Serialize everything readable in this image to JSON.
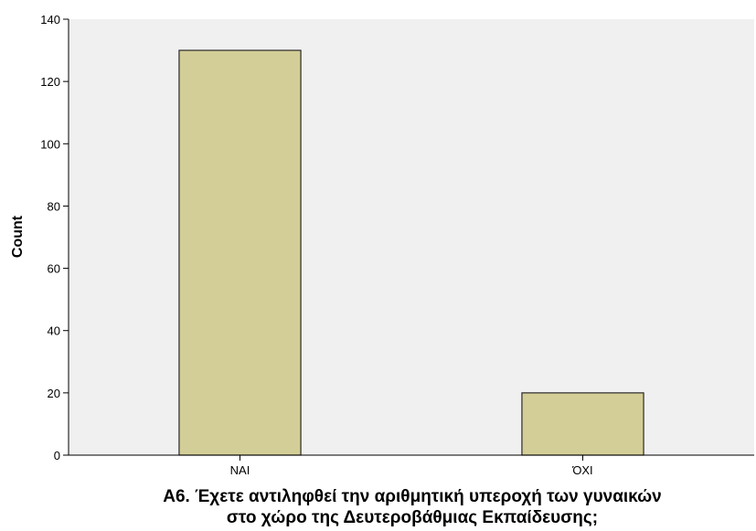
{
  "chart_data": {
    "type": "bar",
    "categories": [
      "ΝΑΙ",
      "ΌΧΙ"
    ],
    "values": [
      130,
      20
    ],
    "ylabel": "Count",
    "xlabel_lines": [
      "Α6. Έχετε αντιληφθεί την αριθμητική υπεροχή των γυναικών",
      "στο χώρο της Δευτεροβάθμιας Εκπαίδευσης;"
    ],
    "ylim": [
      0,
      140
    ],
    "yticks": [
      0,
      20,
      40,
      60,
      80,
      100,
      120,
      140
    ],
    "grid": false,
    "legend": "none",
    "colors": {
      "plot_background": "#f0f0f0",
      "bar_fill": "#d3ce97",
      "bar_stroke": "#2a2a2a",
      "axis": "#000000"
    }
  }
}
